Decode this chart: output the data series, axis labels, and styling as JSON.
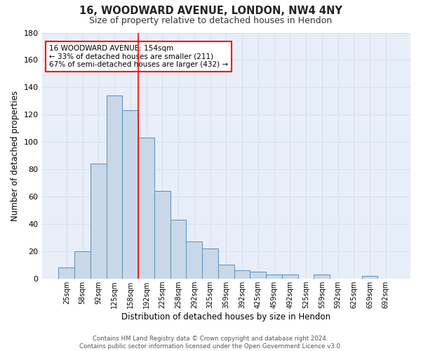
{
  "title_line1": "16, WOODWARD AVENUE, LONDON, NW4 4NY",
  "title_line2": "Size of property relative to detached houses in Hendon",
  "xlabel": "Distribution of detached houses by size in Hendon",
  "ylabel": "Number of detached properties",
  "categories": [
    "25sqm",
    "58sqm",
    "92sqm",
    "125sqm",
    "158sqm",
    "192sqm",
    "225sqm",
    "258sqm",
    "292sqm",
    "325sqm",
    "359sqm",
    "392sqm",
    "425sqm",
    "459sqm",
    "492sqm",
    "525sqm",
    "559sqm",
    "592sqm",
    "625sqm",
    "659sqm",
    "692sqm"
  ],
  "values": [
    8,
    20,
    84,
    134,
    123,
    103,
    64,
    43,
    27,
    22,
    10,
    6,
    5,
    3,
    3,
    0,
    3,
    0,
    0,
    2,
    0
  ],
  "bar_color": "#c8d8e8",
  "bar_edge_color": "#5b8db8",
  "grid_color": "#d8e0ec",
  "background_color": "#e8eef8",
  "vline_x": 4.5,
  "vline_color": "red",
  "annotation_text": "16 WOODWARD AVENUE: 154sqm\n← 33% of detached houses are smaller (211)\n67% of semi-detached houses are larger (432) →",
  "ylim": [
    0,
    180
  ],
  "yticks": [
    0,
    20,
    40,
    60,
    80,
    100,
    120,
    140,
    160,
    180
  ],
  "footnote": "Contains HM Land Registry data © Crown copyright and database right 2024.\nContains public sector information licensed under the Open Government Licence v3.0."
}
